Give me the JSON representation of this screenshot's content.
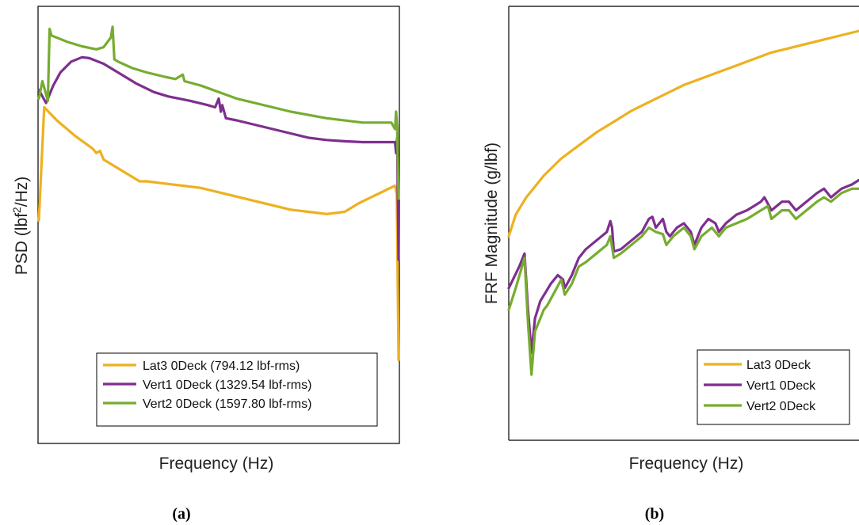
{
  "chart_data": [
    {
      "type": "line",
      "panel_label": "(a)",
      "xlabel": "Frequency (Hz)",
      "ylabel_parts": [
        "PSD (lbf",
        "2",
        "/Hz)"
      ],
      "xlim": [
        0,
        100
      ],
      "ylim": [
        0,
        100
      ],
      "grid": false,
      "ticks_shown": false,
      "legend_position": "bottom-right",
      "series": [
        {
          "name": "Lat3 0Deck (794.12 lbf-rms)",
          "color": "#EDB120",
          "points": [
            [
              0,
              51
            ],
            [
              1.5,
              77
            ],
            [
              5,
              74
            ],
            [
              10,
              70.5
            ],
            [
              15,
              67.5
            ],
            [
              16,
              66.5
            ],
            [
              17,
              67
            ],
            [
              18,
              65
            ],
            [
              20,
              64
            ],
            [
              24,
              62
            ],
            [
              28,
              60
            ],
            [
              30,
              60
            ],
            [
              35,
              59.5
            ],
            [
              40,
              59
            ],
            [
              45,
              58.5
            ],
            [
              50,
              57.5
            ],
            [
              55,
              56.5
            ],
            [
              60,
              55.5
            ],
            [
              65,
              54.5
            ],
            [
              70,
              53.5
            ],
            [
              75,
              53
            ],
            [
              80,
              52.5
            ],
            [
              85,
              53
            ],
            [
              89,
              55
            ],
            [
              99,
              59
            ],
            [
              99.5,
              57
            ],
            [
              100,
              19
            ]
          ]
        },
        {
          "name": "Vert1 0Deck (1329.54 lbf-rms)",
          "color": "#7E2F8E",
          "points": [
            [
              0,
              81
            ],
            [
              2,
              78
            ],
            [
              4,
              82
            ],
            [
              6,
              85
            ],
            [
              9,
              87.5
            ],
            [
              12,
              88.5
            ],
            [
              14,
              88.3
            ],
            [
              18,
              87
            ],
            [
              22,
              85
            ],
            [
              27,
              82.5
            ],
            [
              32,
              80.5
            ],
            [
              36,
              79.5
            ],
            [
              42,
              78.5
            ],
            [
              47,
              77.5
            ],
            [
              49,
              77
            ],
            [
              50,
              79
            ],
            [
              50.6,
              76
            ],
            [
              51,
              77.5
            ],
            [
              52,
              74.5
            ],
            [
              55,
              74
            ],
            [
              60,
              73
            ],
            [
              65,
              72
            ],
            [
              70,
              71
            ],
            [
              75,
              70
            ],
            [
              80,
              69.5
            ],
            [
              85,
              69.2
            ],
            [
              90,
              69
            ],
            [
              99,
              69
            ],
            [
              99.3,
              66.5
            ],
            [
              99.6,
              70
            ],
            [
              100,
              42
            ]
          ]
        },
        {
          "name": "Vert2 0Deck (1597.80 lbf-rms)",
          "color": "#77AC30",
          "points": [
            [
              0,
              79
            ],
            [
              1,
              83
            ],
            [
              2.5,
              78.5
            ],
            [
              3,
              95
            ],
            [
              3.5,
              93.5
            ],
            [
              8,
              92
            ],
            [
              12,
              91
            ],
            [
              16,
              90.3
            ],
            [
              18,
              90.8
            ],
            [
              20,
              93
            ],
            [
              20.5,
              95.5
            ],
            [
              21,
              88
            ],
            [
              22,
              87.5
            ],
            [
              26,
              86
            ],
            [
              30,
              85
            ],
            [
              35,
              84
            ],
            [
              38,
              83.5
            ],
            [
              40,
              84.5
            ],
            [
              40.5,
              83
            ],
            [
              45,
              82
            ],
            [
              50,
              80.5
            ],
            [
              55,
              79
            ],
            [
              60,
              78
            ],
            [
              70,
              76
            ],
            [
              80,
              74.5
            ],
            [
              90,
              73.5
            ],
            [
              98,
              73.5
            ],
            [
              99,
              72
            ],
            [
              99.3,
              76
            ],
            [
              99.6,
              72.5
            ],
            [
              100,
              56
            ]
          ]
        }
      ]
    },
    {
      "type": "line",
      "panel_label": "(b)",
      "xlabel": "Frequency (Hz)",
      "ylabel": "FRF Magnitude (g/lbf)",
      "xlim": [
        0,
        100
      ],
      "ylim": [
        0,
        100
      ],
      "grid": false,
      "ticks_shown": false,
      "legend_position": "bottom-right",
      "series": [
        {
          "name": "Lat3 0Deck",
          "color": "#EDB120",
          "points": [
            [
              0,
              47
            ],
            [
              2,
              52
            ],
            [
              5,
              56
            ],
            [
              10,
              61
            ],
            [
              15,
              65
            ],
            [
              20,
              68
            ],
            [
              25,
              71
            ],
            [
              30,
              73.5
            ],
            [
              35,
              76
            ],
            [
              40,
              78
            ],
            [
              45,
              80
            ],
            [
              50,
              82
            ],
            [
              55,
              83.5
            ],
            [
              60,
              85
            ],
            [
              65,
              86.5
            ],
            [
              70,
              88
            ],
            [
              75,
              89.5
            ],
            [
              80,
              90.5
            ],
            [
              85,
              91.5
            ],
            [
              90,
              92.5
            ],
            [
              95,
              93.5
            ],
            [
              100,
              94.5
            ]
          ]
        },
        {
          "name": "Vert1 0Deck",
          "color": "#7E2F8E",
          "points": [
            [
              0,
              35
            ],
            [
              3,
              40
            ],
            [
              4.5,
              43
            ],
            [
              5.5,
              30
            ],
            [
              6.5,
              20
            ],
            [
              7.5,
              28
            ],
            [
              9,
              32
            ],
            [
              12,
              36
            ],
            [
              14,
              38
            ],
            [
              15.5,
              37
            ],
            [
              16,
              35
            ],
            [
              18,
              38
            ],
            [
              20,
              42
            ],
            [
              22,
              44
            ],
            [
              25,
              46
            ],
            [
              28,
              48
            ],
            [
              29,
              50.5
            ],
            [
              29.5,
              49
            ],
            [
              30,
              43.5
            ],
            [
              32,
              44
            ],
            [
              35,
              46
            ],
            [
              38,
              48
            ],
            [
              40,
              51
            ],
            [
              41,
              51.5
            ],
            [
              42,
              49
            ],
            [
              43,
              50
            ],
            [
              44,
              51
            ],
            [
              45,
              48
            ],
            [
              46,
              47
            ],
            [
              48,
              49
            ],
            [
              50,
              50
            ],
            [
              52,
              48
            ],
            [
              53,
              45
            ],
            [
              55,
              49
            ],
            [
              57,
              51
            ],
            [
              59,
              50
            ],
            [
              60,
              48
            ],
            [
              62,
              50
            ],
            [
              65,
              52
            ],
            [
              68,
              53
            ],
            [
              70,
              54
            ],
            [
              72,
              55
            ],
            [
              73,
              56
            ],
            [
              75,
              53
            ],
            [
              78,
              55
            ],
            [
              80,
              55
            ],
            [
              82,
              53
            ],
            [
              85,
              55
            ],
            [
              88,
              57
            ],
            [
              90,
              58
            ],
            [
              92,
              56
            ],
            [
              95,
              58
            ],
            [
              98,
              59
            ],
            [
              100,
              60
            ]
          ]
        },
        {
          "name": "Vert2 0Deck",
          "color": "#77AC30",
          "points": [
            [
              0,
              30
            ],
            [
              2,
              35
            ],
            [
              4.5,
              42
            ],
            [
              5.5,
              27
            ],
            [
              6.5,
              15
            ],
            [
              7.5,
              25
            ],
            [
              9,
              28
            ],
            [
              10,
              30
            ],
            [
              11,
              31
            ],
            [
              13,
              34
            ],
            [
              15,
              37
            ],
            [
              16,
              33.5
            ],
            [
              18,
              36
            ],
            [
              20,
              40
            ],
            [
              22,
              41
            ],
            [
              25,
              43
            ],
            [
              28,
              45
            ],
            [
              29,
              47
            ],
            [
              30,
              42
            ],
            [
              32,
              43
            ],
            [
              35,
              45
            ],
            [
              38,
              47
            ],
            [
              40,
              49
            ],
            [
              42,
              48
            ],
            [
              44,
              47.5
            ],
            [
              45,
              45
            ],
            [
              47,
              47
            ],
            [
              50,
              49
            ],
            [
              52,
              47
            ],
            [
              53,
              44
            ],
            [
              55,
              47
            ],
            [
              58,
              49
            ],
            [
              60,
              47
            ],
            [
              62,
              49
            ],
            [
              65,
              50
            ],
            [
              68,
              51
            ],
            [
              70,
              52
            ],
            [
              72,
              53
            ],
            [
              74,
              54
            ],
            [
              75,
              51
            ],
            [
              78,
              53
            ],
            [
              80,
              53
            ],
            [
              82,
              51
            ],
            [
              85,
              53
            ],
            [
              88,
              55
            ],
            [
              90,
              56
            ],
            [
              92,
              55
            ],
            [
              95,
              57
            ],
            [
              98,
              58
            ],
            [
              100,
              58
            ]
          ]
        }
      ]
    }
  ]
}
